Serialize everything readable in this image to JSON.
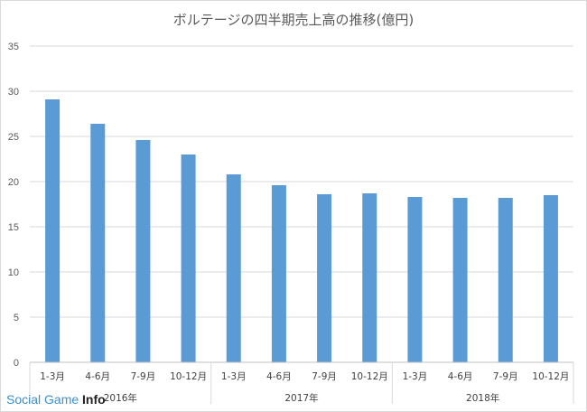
{
  "chart_data": {
    "type": "bar",
    "title": "ボルテージの四半期売上高の推移(億円)",
    "categories": [
      "1-3月",
      "4-6月",
      "7-9月",
      "10-12月",
      "1-3月",
      "4-6月",
      "7-9月",
      "10-12月",
      "1-3月",
      "4-6月",
      "7-9月",
      "10-12月"
    ],
    "groups": [
      {
        "label": "2016年",
        "count": 4
      },
      {
        "label": "2017年",
        "count": 4
      },
      {
        "label": "2018年",
        "count": 4
      }
    ],
    "values": [
      29.1,
      26.4,
      24.6,
      23.0,
      20.8,
      19.6,
      18.6,
      18.7,
      18.3,
      18.2,
      18.2,
      18.5
    ],
    "yticks": [
      0,
      5,
      10,
      15,
      20,
      25,
      30,
      35
    ],
    "ylim": [
      0,
      35
    ],
    "grid": true,
    "bar_color": "#5b9bd5",
    "grid_color": "#d9d9d9"
  },
  "watermark": {
    "part1": "Social Game ",
    "part2": "Info"
  }
}
